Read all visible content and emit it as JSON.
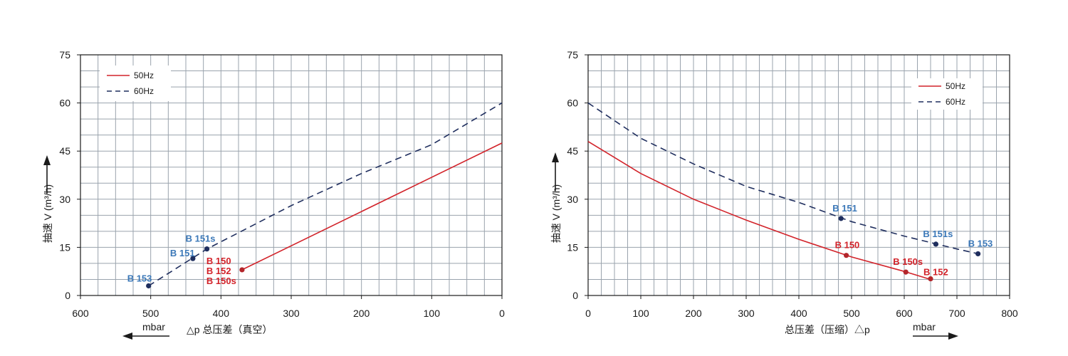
{
  "colors": {
    "c50": "#d2232a",
    "c60": "#1f2e5e",
    "label_blue": "#3b78b8",
    "label_red": "#d2232a"
  },
  "chart_data": [
    {
      "type": "line",
      "xlabel": "总压差（真空）",
      "xlabel_prefix": "△p",
      "unit": "mbar",
      "ylabel": "V (m³/h)",
      "ylabel_prefix": "抽速",
      "xlim": [
        600,
        0
      ],
      "ylim": [
        0,
        75
      ],
      "xticks": [
        "600",
        "500",
        "400",
        "300",
        "200",
        "100",
        "0"
      ],
      "yticks": [
        "0",
        "15",
        "30",
        "45",
        "60",
        "75"
      ],
      "legend": [
        {
          "name": "50Hz"
        },
        {
          "name": "60Hz"
        }
      ],
      "series": [
        {
          "name": "50Hz",
          "style": "solid",
          "x": [
            370,
            0
          ],
          "y": [
            8,
            47.5
          ]
        },
        {
          "name": "60Hz",
          "style": "dashed",
          "x": [
            503,
            420,
            300,
            200,
            100,
            0
          ],
          "y": [
            3,
            14.5,
            28,
            38,
            47,
            60
          ]
        }
      ],
      "points": [
        {
          "x": 503,
          "y": 3,
          "series": 1,
          "label": "B 153"
        },
        {
          "x": 440,
          "y": 11.5,
          "series": 1,
          "label": "B 151"
        },
        {
          "x": 420,
          "y": 14.5,
          "series": 1,
          "label": "B 151s"
        },
        {
          "x": 370,
          "y": 8,
          "series": 0,
          "label": "B 150"
        }
      ],
      "extra_labels": [
        "B 152",
        "B 150s"
      ]
    },
    {
      "type": "line",
      "xlabel": "总压差（压缩）",
      "xlabel_suffix": "△p",
      "unit": "mbar",
      "ylabel": "V (m³/h)",
      "ylabel_prefix": "抽速",
      "xlim": [
        0,
        800
      ],
      "ylim": [
        0,
        75
      ],
      "xticks": [
        "0",
        "100",
        "200",
        "300",
        "400",
        "500",
        "600",
        "700",
        "800"
      ],
      "yticks": [
        "0",
        "15",
        "30",
        "45",
        "60",
        "75"
      ],
      "legend": [
        {
          "name": "50Hz"
        },
        {
          "name": "60Hz"
        }
      ],
      "series": [
        {
          "name": "50Hz",
          "style": "solid",
          "x": [
            0,
            100,
            200,
            300,
            400,
            500,
            600,
            650
          ],
          "y": [
            48,
            38,
            30,
            23.5,
            17.5,
            12,
            7.5,
            5
          ]
        },
        {
          "name": "60Hz",
          "style": "dashed",
          "x": [
            0,
            100,
            200,
            300,
            400,
            500,
            600,
            700,
            740
          ],
          "y": [
            60,
            49,
            41,
            34,
            29,
            23,
            18.5,
            14.5,
            13
          ]
        }
      ],
      "points": [
        {
          "x": 480,
          "y": 24,
          "series": 1,
          "label": "B 151"
        },
        {
          "x": 660,
          "y": 16,
          "series": 1,
          "label": "B 151s"
        },
        {
          "x": 740,
          "y": 13,
          "series": 1,
          "label": "B 153"
        },
        {
          "x": 490,
          "y": 12.5,
          "series": 0,
          "label": "B 150"
        },
        {
          "x": 603,
          "y": 7.3,
          "series": 0,
          "label": "B 150s"
        },
        {
          "x": 650,
          "y": 5.2,
          "series": 0,
          "label": "B 152"
        }
      ]
    }
  ]
}
